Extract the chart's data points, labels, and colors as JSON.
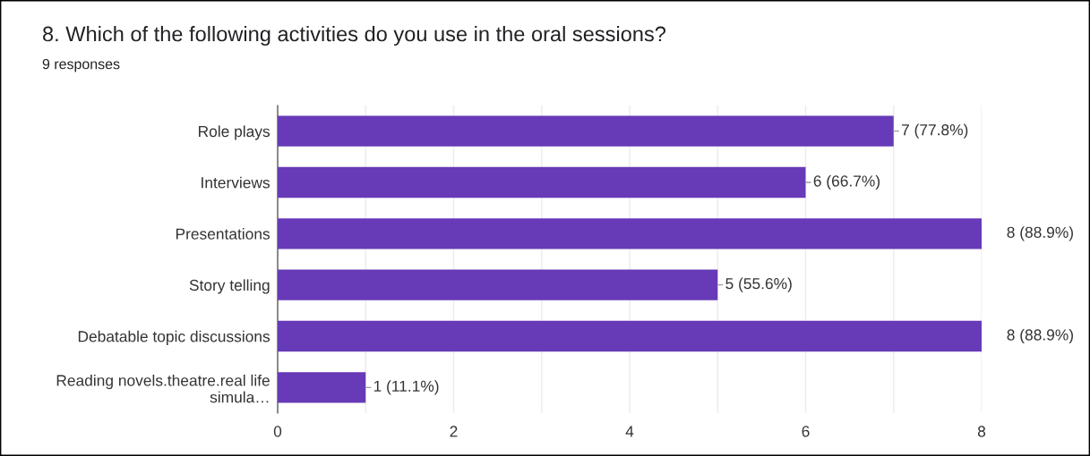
{
  "chart_data": {
    "type": "bar",
    "orientation": "horizontal",
    "title": "8. Which of the following activities do you use in the oral sessions?",
    "subtitle": "9 responses",
    "categories": [
      "Role plays",
      "Interviews",
      "Presentations",
      "Story telling",
      "Debatable topic discussions",
      "Reading novels.theatre.real life simula…"
    ],
    "values": [
      7,
      6,
      8,
      5,
      8,
      1
    ],
    "value_labels": [
      "7 (77.8%)",
      "6 (66.7%)",
      "8 (88.9%)",
      "5 (55.6%)",
      "8 (88.9%)",
      "1 (11.1%)"
    ],
    "color": "#673ab7",
    "xlim": [
      0,
      8
    ],
    "xticks": [
      0,
      {
        "value": 1,
        "label": null
      },
      2,
      {
        "value": 3,
        "label": null
      },
      4,
      {
        "value": 5,
        "label": null
      },
      6,
      {
        "value": 7,
        "label": null
      },
      8
    ],
    "grid": "x"
  }
}
